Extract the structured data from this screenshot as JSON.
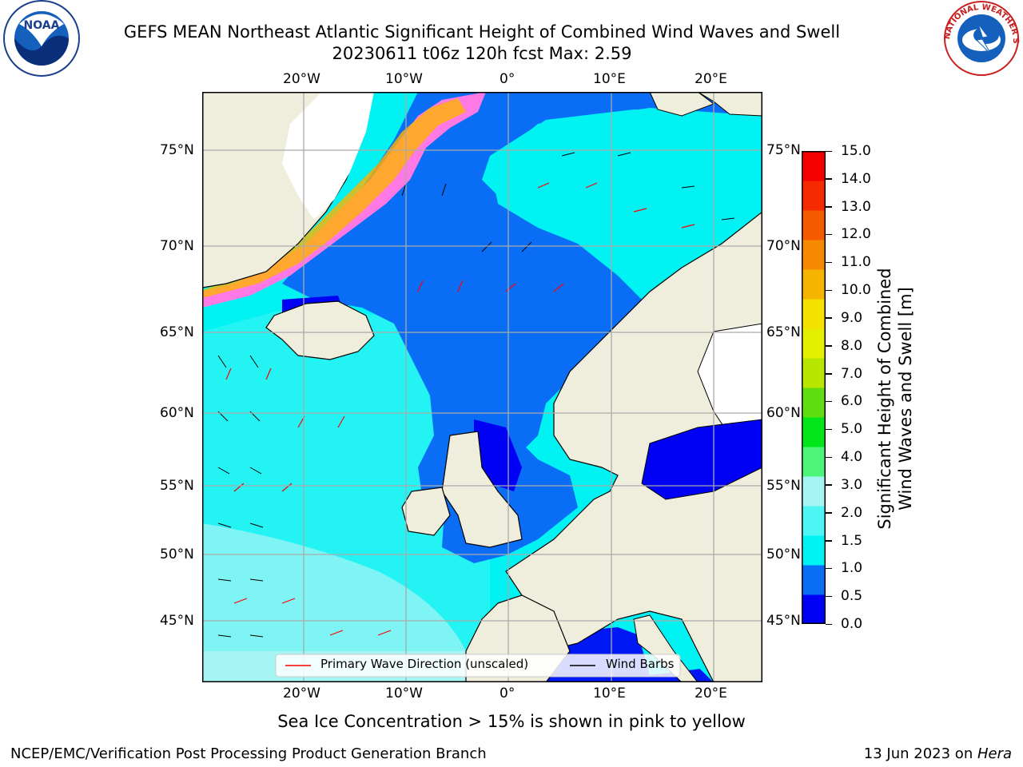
{
  "header": {
    "title_line1": "GEFS MEAN Northeast Atlantic Significant Height of Combined Wind Waves and Swell",
    "title_line2": "20230611 t06z 120h fcst   Max: 2.59"
  },
  "logos": {
    "left": "NOAA",
    "right": "NATIONAL WEATHER SERVICE"
  },
  "map": {
    "lon_ticks": [
      "20°W",
      "10°W",
      "0°",
      "10°E",
      "20°E"
    ],
    "lat_ticks": [
      "75°N",
      "70°N",
      "65°N",
      "60°N",
      "55°N",
      "50°N",
      "45°N"
    ],
    "legend": {
      "wave_dir": "Primary Wave Direction (unscaled)",
      "wind_barbs": "Wind Barbs"
    },
    "caption": "Sea Ice Concentration > 15% is shown in pink to yellow"
  },
  "colorbar": {
    "label_line1": "Significant Height of Combined",
    "label_line2": "Wind Waves and Swell [m]",
    "ticks": [
      "0.0",
      "0.5",
      "1.0",
      "1.5",
      "2.0",
      "3.0",
      "4.0",
      "5.0",
      "6.0",
      "7.0",
      "8.0",
      "9.0",
      "10.0",
      "11.0",
      "12.0",
      "13.0",
      "14.0",
      "15.0"
    ],
    "colors": [
      "#0000f5",
      "#0a6df5",
      "#00f2f2",
      "#4df5f5",
      "#a6f5f5",
      "#4cf57a",
      "#00e61a",
      "#5fdd10",
      "#b8e600",
      "#e5f000",
      "#f5e100",
      "#f5b400",
      "#f58a00",
      "#f55a00",
      "#f52a00",
      "#f50000"
    ]
  },
  "footer": {
    "left": "NCEP/EMC/Verification Post Processing Product Generation Branch",
    "right_date": "13 Jun 2023 on ",
    "right_host": "Hera"
  }
}
